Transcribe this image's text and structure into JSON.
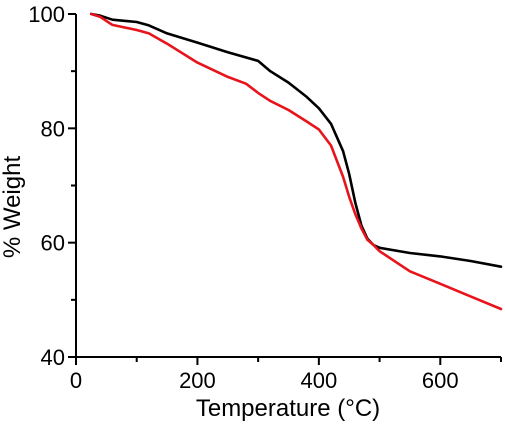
{
  "chart_data": {
    "type": "line",
    "title": "",
    "xlabel": "Temperature (°C)",
    "ylabel": "% Weight",
    "xlim": [
      0,
      700
    ],
    "ylim": [
      40,
      100
    ],
    "x_ticks": [
      "0",
      "200",
      "400",
      "600"
    ],
    "y_ticks": [
      "40",
      "60",
      "80",
      "100"
    ],
    "grid": false,
    "series": [
      {
        "color": "#000000",
        "x": [
          25,
          40,
          60,
          100,
          120,
          150,
          200,
          250,
          300,
          320,
          350,
          380,
          400,
          420,
          440,
          450,
          460,
          470,
          480,
          490,
          500,
          550,
          600,
          650,
          700
        ],
        "y": [
          100,
          99.7,
          99.0,
          98.6,
          98.0,
          96.6,
          95.0,
          93.3,
          91.8,
          90.0,
          88.0,
          85.5,
          83.5,
          80.8,
          76.0,
          72.0,
          67.0,
          63.0,
          60.7,
          59.6,
          59.1,
          58.2,
          57.6,
          56.8,
          55.8
        ]
      },
      {
        "color": "#e8141b",
        "x": [
          25,
          40,
          60,
          100,
          120,
          150,
          200,
          250,
          280,
          300,
          320,
          350,
          380,
          400,
          420,
          440,
          450,
          460,
          470,
          480,
          490,
          500,
          550,
          600,
          650,
          700
        ],
        "y": [
          100,
          99.5,
          98.1,
          97.2,
          96.6,
          94.8,
          91.5,
          89.0,
          87.8,
          86.2,
          84.8,
          83.2,
          81.2,
          79.8,
          77.0,
          71.5,
          68.0,
          65.0,
          62.5,
          60.5,
          59.6,
          58.5,
          55.0,
          52.8,
          50.6,
          48.4
        ]
      }
    ]
  }
}
